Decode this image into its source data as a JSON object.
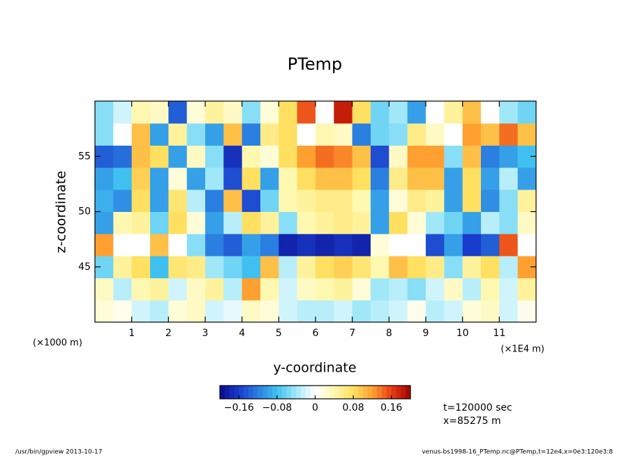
{
  "chart_data": {
    "type": "heatmap",
    "title": "PTemp",
    "x_label": "y-coordinate",
    "y_label": "z-coordinate",
    "x_unit_left": "(×1000 m)",
    "x_unit_right": "(×1E4 m)",
    "annotations": [
      "t=120000 sec",
      "x=85275 m"
    ],
    "footer_left": "/usr/bin/gpview  2013-10-17",
    "footer_right": "venus-bs1998-16_PTemp.nc@PTemp,t=12e4,x=0e3:120e3:8",
    "xlim": [
      0,
      12
    ],
    "ylim": [
      40,
      60
    ],
    "xticks": [
      1,
      2,
      3,
      4,
      5,
      6,
      7,
      8,
      9,
      10,
      11
    ],
    "yticks": [
      45,
      50,
      55
    ],
    "x": [
      0.25,
      0.75,
      1.25,
      1.75,
      2.25,
      2.75,
      3.25,
      3.75,
      4.25,
      4.75,
      5.25,
      5.75,
      6.25,
      6.75,
      7.25,
      7.75,
      8.25,
      8.75,
      9.25,
      9.75,
      10.25,
      10.75,
      11.25,
      11.75
    ],
    "y": [
      41,
      43,
      45,
      47,
      49,
      51,
      53,
      55,
      57,
      59
    ],
    "clim": [
      -0.2,
      0.2
    ],
    "levels_step": 0.01,
    "colormap": [
      "#0a0a8c",
      "#1a3ccc",
      "#2a7fe0",
      "#40c0f0",
      "#a0e8f8",
      "#ffffff",
      "#fff8b0",
      "#ffe060",
      "#ffa030",
      "#e83c14",
      "#a00000"
    ],
    "out_of_range_color": "#ffffff",
    "colorbar_ticks": [
      {
        "value": -0.16,
        "label": "−0.16"
      },
      {
        "value": -0.08,
        "label": "−0.08"
      },
      0,
      0.08,
      0.16
    ],
    "values": [
      [
        0.02,
        0.01,
        -0.02,
        -0.03,
        0.02,
        0.03,
        -0.02,
        -0.01,
        0.03,
        0.02,
        -0.02,
        -0.03,
        -0.03,
        -0.02,
        -0.04,
        -0.03,
        -0.02,
        0.01,
        -0.03,
        -0.02,
        0.02,
        0.03,
        -0.02,
        0.01
      ],
      [
        0.03,
        -0.03,
        0.04,
        0.05,
        -0.02,
        0.03,
        0.05,
        -0.03,
        0.12,
        0.04,
        -0.02,
        0.03,
        0.04,
        0.05,
        0.02,
        -0.04,
        -0.03,
        -0.05,
        -0.02,
        0.03,
        -0.03,
        0.04,
        -0.02,
        0.05
      ],
      [
        -0.06,
        0.05,
        0.08,
        -0.08,
        0.07,
        0.06,
        -0.04,
        -0.06,
        -0.08,
        0.1,
        -0.03,
        0.05,
        0.08,
        0.09,
        0.07,
        0.04,
        0.1,
        0.08,
        0.06,
        -0.05,
        0.05,
        0.08,
        -0.03,
        0.12
      ],
      [
        0.12,
        0.25,
        0.25,
        0.1,
        0.25,
        -0.05,
        -0.12,
        -0.14,
        -0.1,
        -0.12,
        -0.18,
        -0.17,
        -0.18,
        -0.17,
        -0.18,
        0.02,
        -0.25,
        -0.25,
        -0.15,
        -0.1,
        -0.16,
        -0.14,
        0.15,
        0.25
      ],
      [
        -0.1,
        0.04,
        0.05,
        -0.06,
        0.08,
        0.02,
        -0.1,
        -0.03,
        0.08,
        0.05,
        -0.05,
        0.04,
        0.05,
        0.06,
        0.05,
        -0.1,
        0.08,
        0.02,
        -0.04,
        -0.06,
        -0.1,
        -0.03,
        -0.05,
        0.03
      ],
      [
        -0.09,
        -0.11,
        0.08,
        -0.1,
        0.07,
        -0.03,
        -0.12,
        0.1,
        -0.15,
        -0.06,
        0.04,
        0.05,
        0.06,
        0.06,
        0.04,
        -0.1,
        0.02,
        0.06,
        0.05,
        -0.1,
        0.08,
        -0.11,
        -0.05,
        0.05
      ],
      [
        -0.1,
        -0.08,
        0.09,
        -0.1,
        0.02,
        -0.1,
        -0.04,
        -0.15,
        0.08,
        -0.1,
        0.04,
        0.08,
        0.1,
        0.1,
        0.08,
        -0.12,
        0.06,
        0.1,
        0.1,
        -0.1,
        0.08,
        -0.1,
        -0.03,
        -0.1
      ],
      [
        -0.14,
        -0.13,
        0.1,
        0.08,
        -0.1,
        0.03,
        -0.05,
        -0.17,
        0.04,
        0.02,
        0.08,
        0.12,
        0.14,
        0.13,
        0.1,
        -0.15,
        0.03,
        0.12,
        0.12,
        -0.05,
        0.1,
        -0.12,
        -0.1,
        -0.08
      ],
      [
        -0.05,
        0.25,
        0.1,
        -0.1,
        0.05,
        -0.05,
        -0.1,
        0.1,
        -0.12,
        0.06,
        0.08,
        0.25,
        0.04,
        0.03,
        -0.12,
        -0.06,
        -0.05,
        0.06,
        0.03,
        0.25,
        0.12,
        0.1,
        0.14,
        0.1
      ],
      [
        -0.05,
        -0.02,
        0.04,
        0.03,
        -0.14,
        0.02,
        0.05,
        0.03,
        -0.05,
        0.02,
        0.08,
        0.15,
        0.25,
        0.18,
        0.08,
        -0.06,
        -0.04,
        -0.1,
        -0.25,
        0.05,
        0.1,
        -0.25,
        -0.04,
        -0.06
      ]
    ]
  }
}
